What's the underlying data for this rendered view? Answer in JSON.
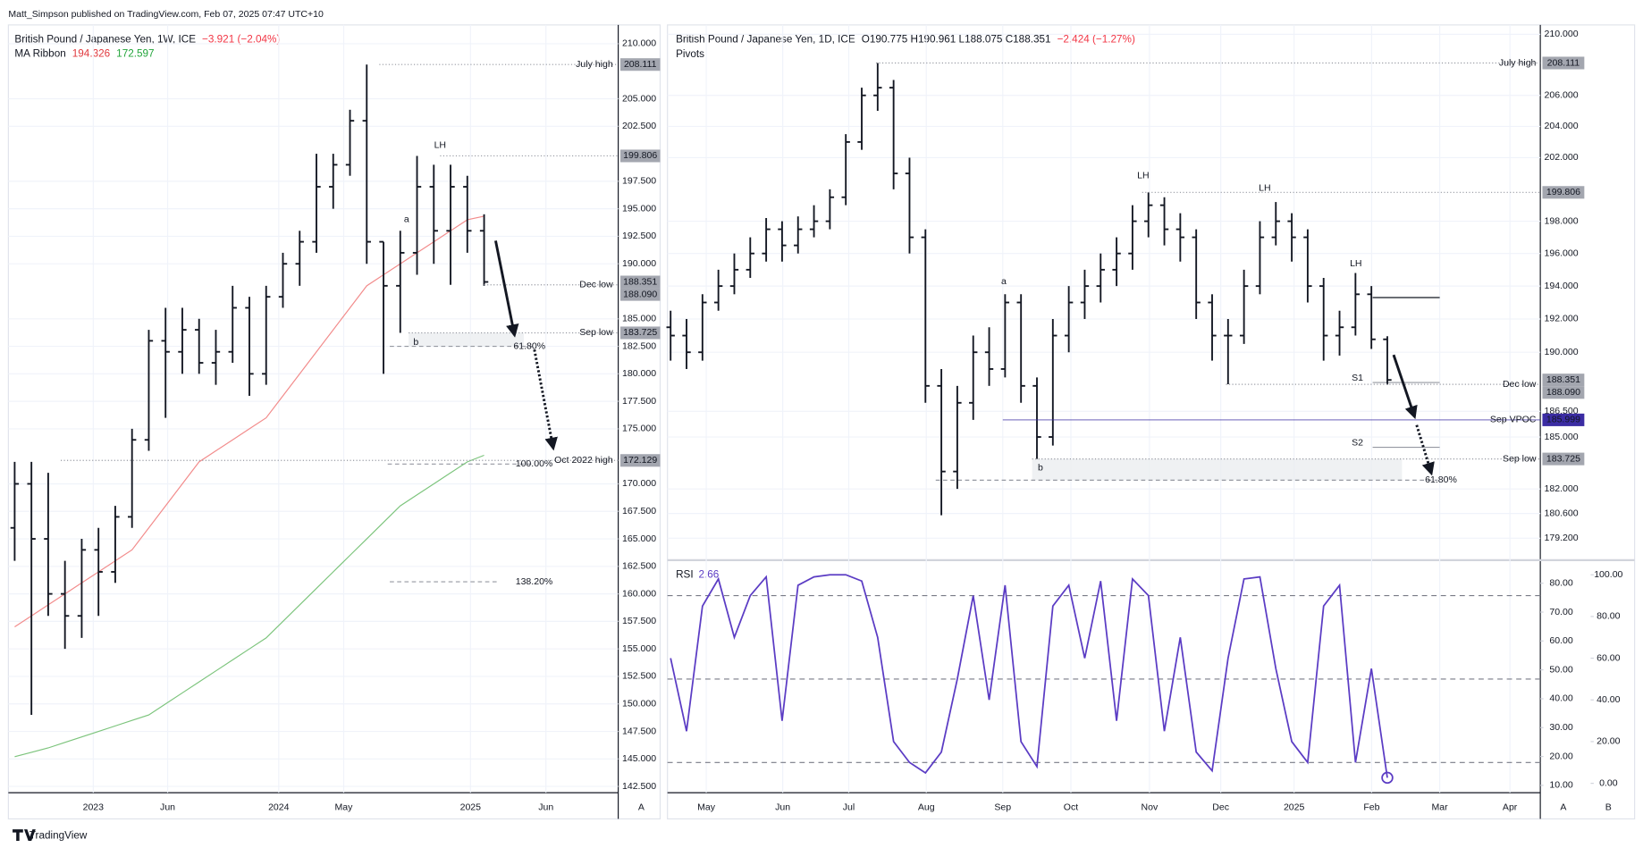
{
  "header": {
    "publisher": "Matt_Simpson published on TradingView.com, Feb 07, 2025 07:47 UTC+10"
  },
  "footer": {
    "brand": "TradingView"
  },
  "buttons": [
    "A",
    "A",
    "B"
  ],
  "chart_data": [
    {
      "type": "ohlc",
      "title": "British Pound / Japanese Yen, 1W, ICE",
      "change": "−3.921 (−2.04%)",
      "indicator": "MA Ribbon",
      "color": "#131722",
      "open": [
        166,
        170,
        165,
        160,
        158,
        164,
        162,
        167,
        174,
        183,
        182,
        184,
        181,
        182,
        186,
        180,
        187,
        190,
        192,
        197,
        199,
        203,
        192,
        188,
        191,
        197,
        193,
        197,
        193
      ],
      "high": [
        172,
        172,
        171,
        163,
        165,
        166,
        168,
        175,
        184,
        186,
        186,
        185,
        184,
        188,
        187,
        188,
        191,
        193,
        200,
        200,
        204,
        208.111,
        192,
        193,
        199.806,
        199,
        199,
        198,
        194.5
      ],
      "low": [
        163,
        149,
        158,
        155,
        156,
        158,
        161,
        166,
        173,
        176,
        180,
        180,
        179,
        181,
        178,
        179,
        186,
        188,
        191,
        195,
        198,
        190,
        180,
        183.725,
        189,
        190,
        188.09,
        191,
        188
      ],
      "close": [
        170,
        165,
        160,
        158,
        164,
        162,
        167,
        174,
        183,
        182,
        184,
        181,
        182,
        186,
        180,
        187,
        190,
        192,
        197,
        199,
        203,
        192,
        188,
        191,
        197,
        193,
        197,
        193,
        188.351
      ],
      "series": [
        {
          "color": "#f28b8b",
          "values": [
            157,
            158,
            159,
            160,
            161,
            162,
            163,
            164,
            166,
            168,
            170,
            172,
            173,
            174,
            175,
            176,
            178,
            180,
            182,
            184,
            186,
            188,
            189,
            190,
            191,
            192,
            193,
            194,
            194.326
          ]
        },
        {
          "color": "#7cc47c",
          "values": [
            145.2,
            145.6,
            146,
            146.5,
            147,
            147.5,
            148,
            148.5,
            149,
            150,
            151,
            152,
            153,
            154,
            155,
            156,
            157.5,
            159,
            160.5,
            162,
            163.5,
            165,
            166.5,
            168,
            169,
            170,
            171,
            172,
            172.597
          ]
        }
      ],
      "ylim": [
        141.93,
        211.71
      ],
      "yticks": [
        {
          "value": 210,
          "label": "210.000"
        },
        {
          "value": 205,
          "label": "205.000"
        },
        {
          "value": 202.5,
          "label": "202.500"
        },
        {
          "value": 197.5,
          "label": "197.500"
        },
        {
          "value": 195,
          "label": "195.000"
        },
        {
          "value": 192.5,
          "label": "192.500"
        },
        {
          "value": 190,
          "label": "190.000"
        },
        {
          "value": 185,
          "label": "185.000"
        },
        {
          "value": 182.5,
          "label": "182.500"
        },
        {
          "value": 180,
          "label": "180.000"
        },
        {
          "value": 177.5,
          "label": "177.500"
        },
        {
          "value": 175,
          "label": "175.000"
        },
        {
          "value": 170,
          "label": "170.000"
        },
        {
          "value": 167.5,
          "label": "167.500"
        },
        {
          "value": 165,
          "label": "165.000"
        },
        {
          "value": 162.5,
          "label": "162.500"
        },
        {
          "value": 160,
          "label": "160.000"
        },
        {
          "value": 157.5,
          "label": "157.500"
        },
        {
          "value": 155,
          "label": "155.000"
        },
        {
          "value": 152.5,
          "label": "152.500"
        },
        {
          "value": 150,
          "label": "150.000"
        },
        {
          "value": 147.5,
          "label": "147.500"
        },
        {
          "value": 145,
          "label": "145.000"
        },
        {
          "value": 142.5,
          "label": "142.500"
        }
      ],
      "time_labels": [
        "2023",
        "Jun",
        "2024",
        "May",
        "2025",
        "Jun"
      ],
      "levels": [
        {
          "name": "July high",
          "value": 208.111
        },
        {
          "value": 199.806
        },
        {
          "value": 188.351
        },
        {
          "name": "Dec low",
          "value": 188.09,
          "label": "188.090"
        },
        {
          "name": "Sep low",
          "value": 183.725
        },
        {
          "name": "Oct 2022 high",
          "value": 172.129
        }
      ],
      "fibs": [
        {
          "label": "61.80%",
          "value": 182.5
        },
        {
          "label": "100.00%",
          "value": 171.8
        },
        {
          "label": "138.20%",
          "value": 161.1
        }
      ],
      "annotations": [
        "LH",
        "a",
        "b"
      ]
    },
    {
      "type": "ohlc",
      "title": "British Pound / Japanese Yen, 1D, ICE",
      "quote": "O190.775 H190.961 L188.075 C188.351",
      "change": "−2.424 (−1.27%)",
      "indicator": "Pivots",
      "color": "#131722",
      "log_scale": true,
      "open": [
        191.5,
        191,
        190,
        193,
        194,
        195,
        196,
        197.5,
        196.5,
        197.5,
        198,
        199.5,
        203,
        206,
        206.5,
        201,
        197,
        188,
        183,
        187,
        190,
        189,
        193,
        188,
        185,
        191,
        193,
        194,
        195,
        196,
        198,
        199,
        197.5,
        197,
        193,
        191,
        191,
        194,
        197,
        198,
        197,
        194,
        191,
        191.5,
        193.5,
        190.775
      ],
      "high": [
        192.5,
        192,
        193.5,
        195,
        196,
        197,
        198.2,
        198,
        198.3,
        199,
        200,
        203.5,
        206.5,
        208.111,
        207,
        202,
        197.5,
        189,
        188,
        191,
        191.5,
        193.5,
        193.5,
        188.5,
        192,
        194,
        195,
        196,
        197,
        199,
        199.806,
        199.5,
        198.5,
        197.5,
        193.5,
        192,
        195,
        198,
        199.2,
        198.5,
        197.5,
        194.5,
        192.5,
        194.8,
        194,
        190.961
      ],
      "low": [
        189.5,
        189,
        189.5,
        192.5,
        193.5,
        194.5,
        195.5,
        195.5,
        196,
        197,
        197.5,
        199,
        202.5,
        205,
        200,
        196,
        187,
        180.5,
        182,
        186,
        188,
        188.5,
        187,
        183.725,
        184.5,
        190,
        192,
        193,
        194,
        195,
        197,
        196.5,
        195.5,
        192,
        189.5,
        188.1,
        190.5,
        193.5,
        196.5,
        195.5,
        193,
        189.5,
        189.8,
        191,
        190.2,
        188.075
      ],
      "close": [
        191,
        190,
        193,
        194,
        195,
        196,
        197.5,
        196.5,
        197.5,
        198,
        199.5,
        203,
        206,
        206.5,
        201,
        197,
        188,
        183,
        187,
        190,
        189,
        193,
        188,
        185,
        191,
        193,
        194,
        195,
        196,
        198,
        199,
        197.5,
        197,
        193,
        191,
        191,
        194,
        197,
        198,
        197,
        194,
        191,
        191.5,
        193.5,
        190.775,
        188.351
      ],
      "ylim": [
        178.14,
        210.62
      ],
      "yticks": [
        {
          "value": 210,
          "label": "210.000"
        },
        {
          "value": 206,
          "label": "206.000"
        },
        {
          "value": 204,
          "label": "204.000"
        },
        {
          "value": 202,
          "label": "202.000"
        },
        {
          "value": 198,
          "label": "198.000"
        },
        {
          "value": 196,
          "label": "196.000"
        },
        {
          "value": 194,
          "label": "194.000"
        },
        {
          "value": 192,
          "label": "192.000"
        },
        {
          "value": 190,
          "label": "190.000"
        },
        {
          "value": 186.5,
          "label": "186.500"
        },
        {
          "value": 185,
          "label": "185.000"
        },
        {
          "value": 182,
          "label": "182.000"
        },
        {
          "value": 180.6,
          "label": "180.600"
        },
        {
          "value": 179.2,
          "label": "179.200"
        }
      ],
      "time_labels": [
        "May",
        "Jun",
        "Jul",
        "Aug",
        "Sep",
        "Oct",
        "Nov",
        "Dec",
        "2025",
        "Feb",
        "Mar",
        "Apr"
      ],
      "levels": [
        {
          "name": "July high",
          "value": 208.111
        },
        {
          "value": 199.806
        },
        {
          "value": 188.351
        },
        {
          "name": "Dec low",
          "value": 188.09,
          "label": "188.090"
        },
        {
          "name": "Sep VPOC",
          "value": 185.999,
          "color": "#3b2ca3"
        },
        {
          "name": "Sep low",
          "value": 183.725
        }
      ],
      "pivots": [
        {
          "value": 193.3
        },
        {
          "name": "S1",
          "value": 188.2
        },
        {
          "name": "S2",
          "value": 184.4
        }
      ],
      "fibs": [
        {
          "label": "61.80%",
          "value": 182.5
        }
      ],
      "annotations": [
        "a",
        "b",
        "LH",
        "LH",
        "LH"
      ]
    },
    {
      "type": "line",
      "title": "RSI",
      "series": [
        {
          "color": "#5b3cc4",
          "values": [
            60,
            25,
            85,
            98,
            70,
            90,
            99,
            30,
            95,
            99,
            100,
            100,
            97,
            70,
            20,
            10,
            5,
            15,
            50,
            90,
            40,
            95,
            20,
            8,
            85,
            95,
            60,
            97,
            30,
            98,
            90,
            25,
            70,
            15,
            6,
            60,
            98,
            99,
            55,
            20,
            10,
            85,
            95,
            10,
            55,
            2.66
          ]
        }
      ],
      "bands": [
        90,
        50,
        10
      ],
      "ylim": [
        -4.5,
        105.0
      ],
      "yticks": [
        {
          "value": 0,
          "label": "0.00"
        },
        {
          "value": 20,
          "label": "20.00"
        },
        {
          "value": 40,
          "label": "40.00"
        },
        {
          "value": 60,
          "label": "60.00"
        },
        {
          "value": 80,
          "label": "80.00"
        },
        {
          "value": 100,
          "label": "100.00"
        }
      ],
      "y2lim": [
        7.46,
        86.53
      ],
      "y2ticks": [
        {
          "value": 10,
          "label": "10.00"
        },
        {
          "value": 20,
          "label": "20.00"
        },
        {
          "value": 30,
          "label": "30.00"
        },
        {
          "value": 40,
          "label": "40.00"
        },
        {
          "value": 50,
          "label": "50.00"
        },
        {
          "value": 60,
          "label": "60.00"
        },
        {
          "value": 70,
          "label": "70.00"
        },
        {
          "value": 80,
          "label": "80.00"
        }
      ]
    }
  ]
}
